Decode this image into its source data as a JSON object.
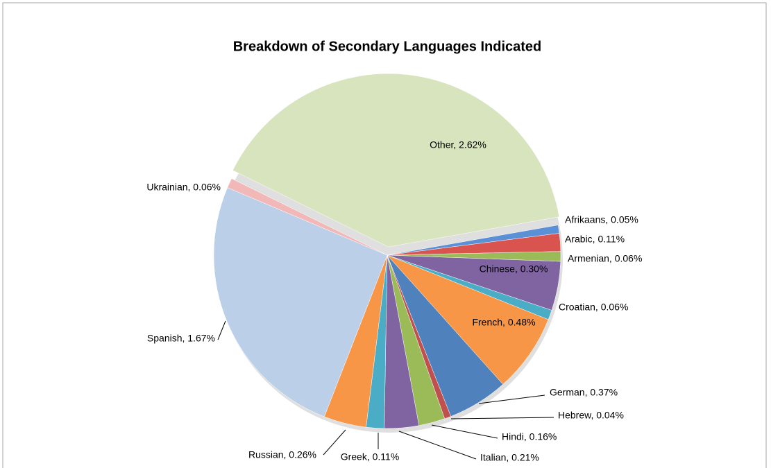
{
  "chart_data": {
    "type": "pie",
    "title": "Breakdown of Secondary Languages Indicated",
    "categories": [
      "Afrikaans",
      "Arabic",
      "Armenian",
      "Chinese",
      "Croatian",
      "French",
      "German",
      "Hebrew",
      "Hindi",
      "Italian",
      "Greek",
      "Russian",
      "Spanish",
      "Ukrainian",
      "Other"
    ],
    "values": [
      0.05,
      0.11,
      0.06,
      0.3,
      0.06,
      0.48,
      0.37,
      0.04,
      0.16,
      0.21,
      0.11,
      0.26,
      1.67,
      0.06,
      2.62
    ],
    "value_labels": [
      "Afrikaans, 0.05%",
      "Arabic, 0.11%",
      "Armenian, 0.06%",
      "Chinese, 0.30%",
      "Croatian, 0.06%",
      "French, 0.48%",
      "German, 0.37%",
      "Hebrew, 0.04%",
      "Hindi, 0.16%",
      "Italian, 0.21%",
      "Greek, 0.11%",
      "Russian, 0.26%",
      "Spanish, 1.67%",
      "Ukrainian, 0.06%",
      "Other, 2.62%"
    ],
    "colors": [
      "#5b8fd6",
      "#d9534f",
      "#9bbb59",
      "#8064a2",
      "#4bacc6",
      "#f79646",
      "#4f81bd",
      "#c0504d",
      "#9bbb59",
      "#8064a2",
      "#4bacc6",
      "#f79646",
      "#bccfe8",
      "#f2b8b8",
      "#d7e4bd"
    ]
  }
}
